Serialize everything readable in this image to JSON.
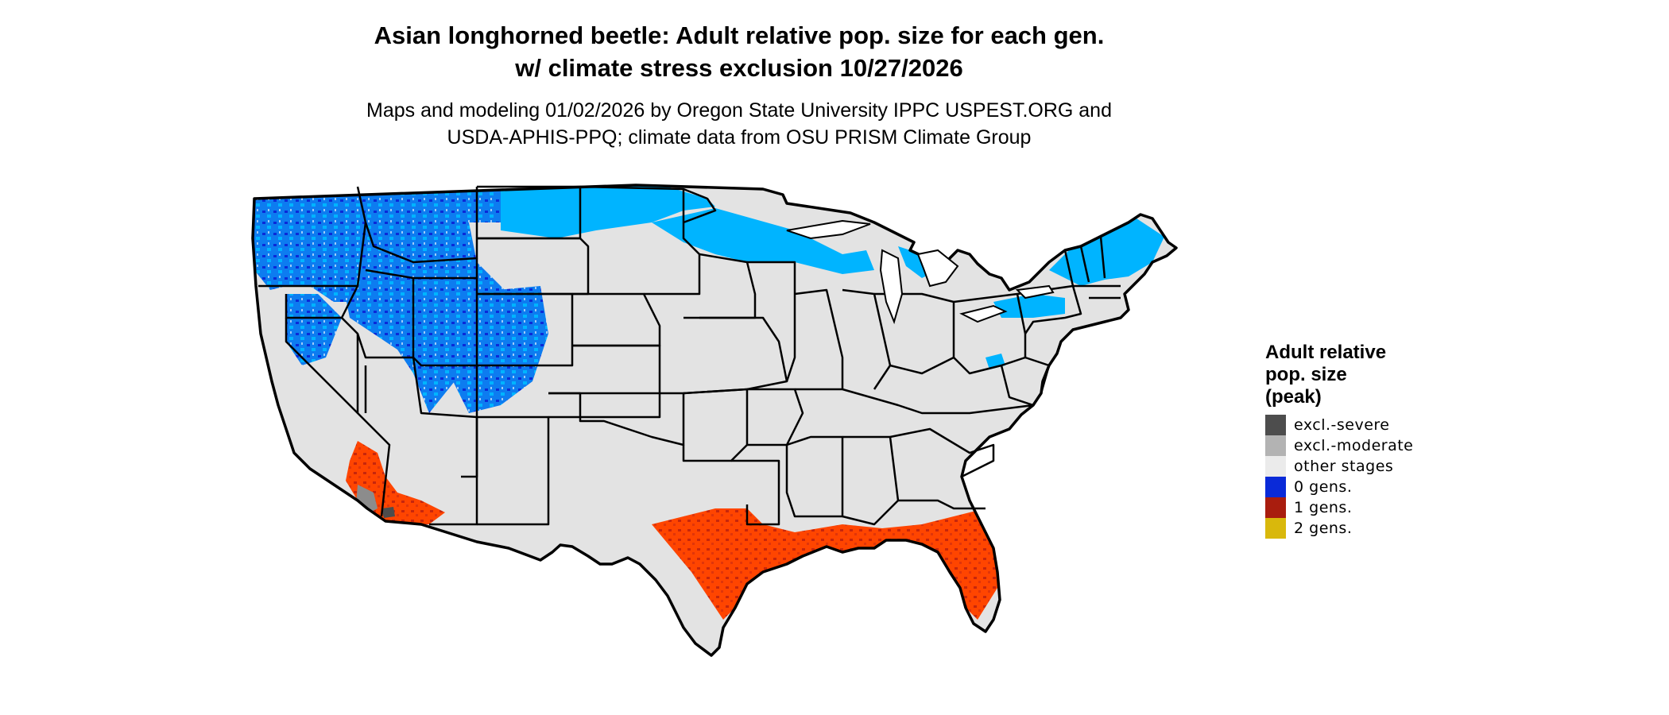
{
  "title": {
    "line1": "Asian longhorned beetle: Adult relative pop. size for each gen.",
    "line2": "w/ climate stress exclusion 10/27/2026"
  },
  "subtitle": {
    "line1": "Maps and modeling 01/02/2026 by Oregon State University IPPC USPEST.ORG and",
    "line2": "USDA-APHIS-PPQ; climate data from OSU PRISM Climate Group"
  },
  "legend": {
    "title_lines": [
      "Adult relative",
      "pop. size",
      "(peak)"
    ],
    "items": [
      {
        "label": "excl.-severe",
        "color": "#4d4d4d"
      },
      {
        "label": "excl.-moderate",
        "color": "#b3b3b3"
      },
      {
        "label": "other stages",
        "color": "#ebebeb"
      },
      {
        "label": "0 gens.",
        "color": "#0a2ad8"
      },
      {
        "label": "1 gens.",
        "color": "#a91d0e"
      },
      {
        "label": "2 gens.",
        "color": "#d9b80c"
      }
    ]
  },
  "map": {
    "base_color": "#e3e3e3",
    "zero_gen_light": "#00b4ff",
    "zero_gen_mid": "#0d7cf0",
    "zero_gen_dark": "#0a2ad8",
    "one_gen_orange": "#ff4500",
    "one_gen_dark": "#c7260c",
    "exclusion_grey": "#8c8c8c",
    "border_color": "#000000"
  }
}
